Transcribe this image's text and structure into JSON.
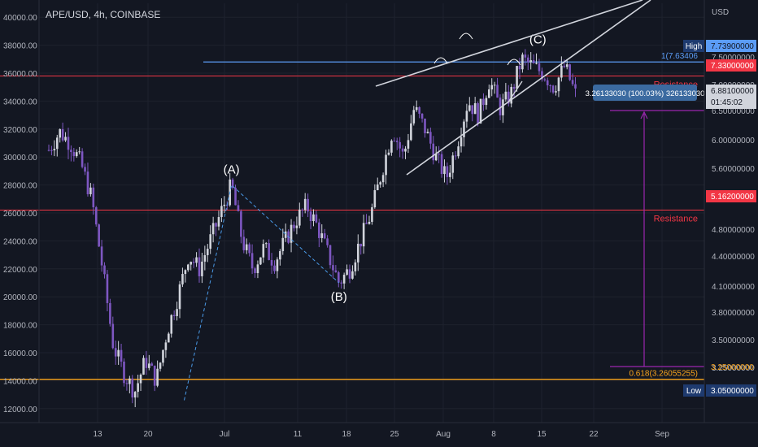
{
  "header": {
    "symbol_line": "APE/USD, 4h, COINBASE"
  },
  "colors": {
    "background": "#131722",
    "up": "#d1d4dc",
    "down": "#7e57c2",
    "resistance": "#f23645",
    "fib_high": "#5b9cf6",
    "fib_low": "#f7a21b",
    "measure": "#9c27b0",
    "wedge": "#d1d4dc",
    "abc_dash": "#4a9ae8"
  },
  "chart_data": {
    "type": "candlestick",
    "title": "APE/USD, 4h, COINBASE",
    "left_axis": {
      "ylim": [
        11000,
        41000
      ],
      "ticks": [
        "12000.00",
        "14000.00",
        "16000.00",
        "18000.00",
        "20000.00",
        "22000.00",
        "24000.00",
        "26000.00",
        "28000.00",
        "30000.00",
        "32000.00",
        "34000.00",
        "36000.00",
        "38000.00",
        "40000.00"
      ]
    },
    "right_axis": {
      "unit_label": "USD",
      "ticks": [
        "3.05000000",
        "3.25000000",
        "3.50000000",
        "3.80000000",
        "4.10000000",
        "4.40000000",
        "4.80000000",
        "5.20000000",
        "5.60000000",
        "6.00000000",
        "6.50000000",
        "7.00000000",
        "7.50000000",
        "7.73900000"
      ],
      "tags": [
        {
          "text": "7.73900000",
          "value": 7.739,
          "kind": "fib_high",
          "side_label": "High"
        },
        {
          "text": "7.33000000",
          "value": 7.33,
          "kind": "resistance"
        },
        {
          "text": "6.88100000",
          "value": 6.881,
          "kind": "last",
          "countdown": "01:45:02"
        },
        {
          "text": "5.16200000",
          "value": 5.162,
          "kind": "resistance"
        },
        {
          "text": "3.25000000",
          "value": 3.25,
          "kind": "fib_low"
        },
        {
          "text": "3.05000000",
          "value": 3.05,
          "kind": "low",
          "side_label": "Low"
        }
      ]
    },
    "x_ticks": [
      "13",
      "20",
      "Jul",
      "11",
      "18",
      "25",
      "Aug",
      "8",
      "15",
      "22",
      "Sep"
    ],
    "price_path": [
      {
        "t": 0,
        "p": 30500
      },
      {
        "t": 1,
        "p": 31800
      },
      {
        "t": 2,
        "p": 31000
      },
      {
        "t": 3,
        "p": 29500
      },
      {
        "t": 4,
        "p": 27000
      },
      {
        "t": 5,
        "p": 22000
      },
      {
        "t": 6,
        "p": 16500
      },
      {
        "t": 7,
        "p": 14500
      },
      {
        "t": 8,
        "p": 13200
      },
      {
        "t": 9,
        "p": 15500
      },
      {
        "t": 10,
        "p": 14000
      },
      {
        "t": 11,
        "p": 17500
      },
      {
        "t": 12,
        "p": 20000
      },
      {
        "t": 13,
        "p": 23000
      },
      {
        "t": 14,
        "p": 22000
      },
      {
        "t": 15,
        "p": 24000
      },
      {
        "t": 16,
        "p": 26000
      },
      {
        "t": 17,
        "p": 28000
      },
      {
        "t": 18,
        "p": 24000
      },
      {
        "t": 19,
        "p": 22000
      },
      {
        "t": 20,
        "p": 23500
      },
      {
        "t": 21,
        "p": 22500
      },
      {
        "t": 22,
        "p": 24000
      },
      {
        "t": 23,
        "p": 25500
      },
      {
        "t": 24,
        "p": 26500
      },
      {
        "t": 25,
        "p": 25000
      },
      {
        "t": 26,
        "p": 23000
      },
      {
        "t": 27,
        "p": 21000
      },
      {
        "t": 28,
        "p": 22000
      },
      {
        "t": 29,
        "p": 24000
      },
      {
        "t": 30,
        "p": 26000
      },
      {
        "t": 31,
        "p": 29000
      },
      {
        "t": 32,
        "p": 32000
      },
      {
        "t": 33,
        "p": 30000
      },
      {
        "t": 34,
        "p": 33500
      },
      {
        "t": 35,
        "p": 32000
      },
      {
        "t": 36,
        "p": 30000
      },
      {
        "t": 37,
        "p": 28500
      },
      {
        "t": 38,
        "p": 31000
      },
      {
        "t": 39,
        "p": 34000
      },
      {
        "t": 40,
        "p": 33000
      },
      {
        "t": 41,
        "p": 35500
      },
      {
        "t": 42,
        "p": 33500
      },
      {
        "t": 43,
        "p": 34500
      },
      {
        "t": 44,
        "p": 37000
      },
      {
        "t": 45,
        "p": 36500
      },
      {
        "t": 46,
        "p": 36000
      },
      {
        "t": 47,
        "p": 35000
      },
      {
        "t": 48,
        "p": 36500
      },
      {
        "t": 49,
        "p": 34500
      }
    ],
    "levels": [
      {
        "kind": "resistance",
        "value": 35800,
        "label": "Resistance"
      },
      {
        "kind": "resistance",
        "value": 26200,
        "label": "Resistance"
      },
      {
        "kind": "fib",
        "value": 36800,
        "label": "1(7.63406",
        "color": "fib_high"
      },
      {
        "kind": "fib",
        "value": 14100,
        "label": "0.618(3.26055255)",
        "color": "fib_low"
      }
    ],
    "waves": [
      {
        "label": "(A)",
        "t": 17,
        "p": 28000
      },
      {
        "label": "(B)",
        "t": 27,
        "p": 21000
      },
      {
        "label": "(C)",
        "t": 45.5,
        "p": 37300
      }
    ],
    "measure": {
      "from": 14100,
      "to": 32500,
      "label": "3.26133030 (100.03%) 326133030"
    },
    "wedge": {
      "upper": [
        [
          36,
          34200
        ],
        [
          56,
          41000
        ]
      ],
      "lower": [
        [
          37,
          28400
        ],
        [
          56,
          41000
        ]
      ],
      "lower_start": [
        42,
        32000
      ]
    }
  }
}
